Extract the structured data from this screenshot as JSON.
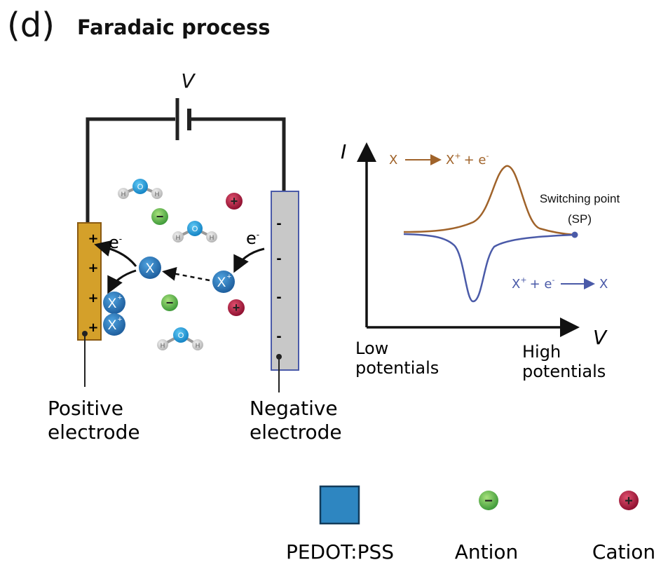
{
  "panel": {
    "label": "(d)",
    "title": "Faradaic process"
  },
  "circuit": {
    "voltage_label": "V",
    "electron_label": "e",
    "electron_sup": "-",
    "positive_electrode": {
      "line1": "Positive",
      "line2": "electrode",
      "charge_symbol": "+"
    },
    "negative_electrode": {
      "line1": "Negative",
      "line2": "electrode",
      "charge_symbol": "-"
    },
    "species_x": "X",
    "species_xplus": "X",
    "species_xplus_sup": "+",
    "water_o": "O",
    "water_h": "H",
    "anion_symbol": "−",
    "cation_symbol": "+"
  },
  "cv_plot": {
    "y_axis": "I",
    "x_axis": "V",
    "oxidation": {
      "left": "X",
      "right": "X",
      "right_sup": "+",
      "plus": "+ e",
      "e_sup": "-"
    },
    "reduction": {
      "left": "X",
      "left_sup": "+",
      "plus": "+ e",
      "e_sup": "-",
      "right": "X"
    },
    "switching_point": {
      "line1": "Switching point",
      "line2": "(SP)"
    },
    "low": {
      "line1": "Low",
      "line2": "potentials"
    },
    "high": {
      "line1": "High",
      "line2": "potentials"
    }
  },
  "legend": [
    {
      "label": "PEDOT:PSS"
    },
    {
      "label": "Antion"
    },
    {
      "label": "Cation"
    }
  ],
  "colors": {
    "electrode_positive": "#d4a02a",
    "electrode_negative": "#c8c8c8",
    "pedot": "#2e86c1",
    "anion": "#5cb85c",
    "cation": "#b3183c",
    "oxidation_curve": "#a0632a",
    "reduction_curve": "#4a5aa8"
  }
}
